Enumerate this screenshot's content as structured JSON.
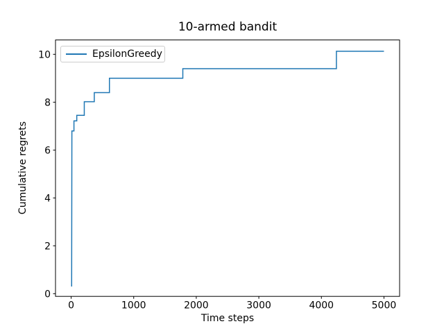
{
  "chart_data": {
    "type": "line",
    "subtype": "step",
    "title": "10-armed bandit",
    "xlabel": "Time steps",
    "ylabel": "Cumulative regrets",
    "xlim": [
      -250,
      5250
    ],
    "ylim": [
      -0.113,
      10.6
    ],
    "xticks": [
      0,
      1000,
      2000,
      3000,
      4000,
      5000
    ],
    "yticks": [
      0,
      2,
      4,
      6,
      8,
      10
    ],
    "grid": false,
    "background": "#ffffff",
    "axis_color": "#000000",
    "legend": {
      "position": "upper left",
      "entries": [
        {
          "label": "EpsilonGreedy",
          "color": "#1f77b4"
        }
      ]
    },
    "series": [
      {
        "name": "EpsilonGreedy",
        "color": "#1f77b4",
        "line_width": 1.5,
        "points": [
          [
            8,
            0.3
          ],
          [
            12,
            6.8
          ],
          [
            45,
            6.8
          ],
          [
            45,
            7.22
          ],
          [
            90,
            7.22
          ],
          [
            90,
            7.45
          ],
          [
            210,
            7.45
          ],
          [
            210,
            8.02
          ],
          [
            370,
            8.02
          ],
          [
            370,
            8.4
          ],
          [
            612,
            8.4
          ],
          [
            612,
            9.0
          ],
          [
            1785,
            9.0
          ],
          [
            1785,
            9.4
          ],
          [
            4240,
            9.4
          ],
          [
            4240,
            10.13
          ],
          [
            5000,
            10.13
          ]
        ]
      }
    ]
  }
}
